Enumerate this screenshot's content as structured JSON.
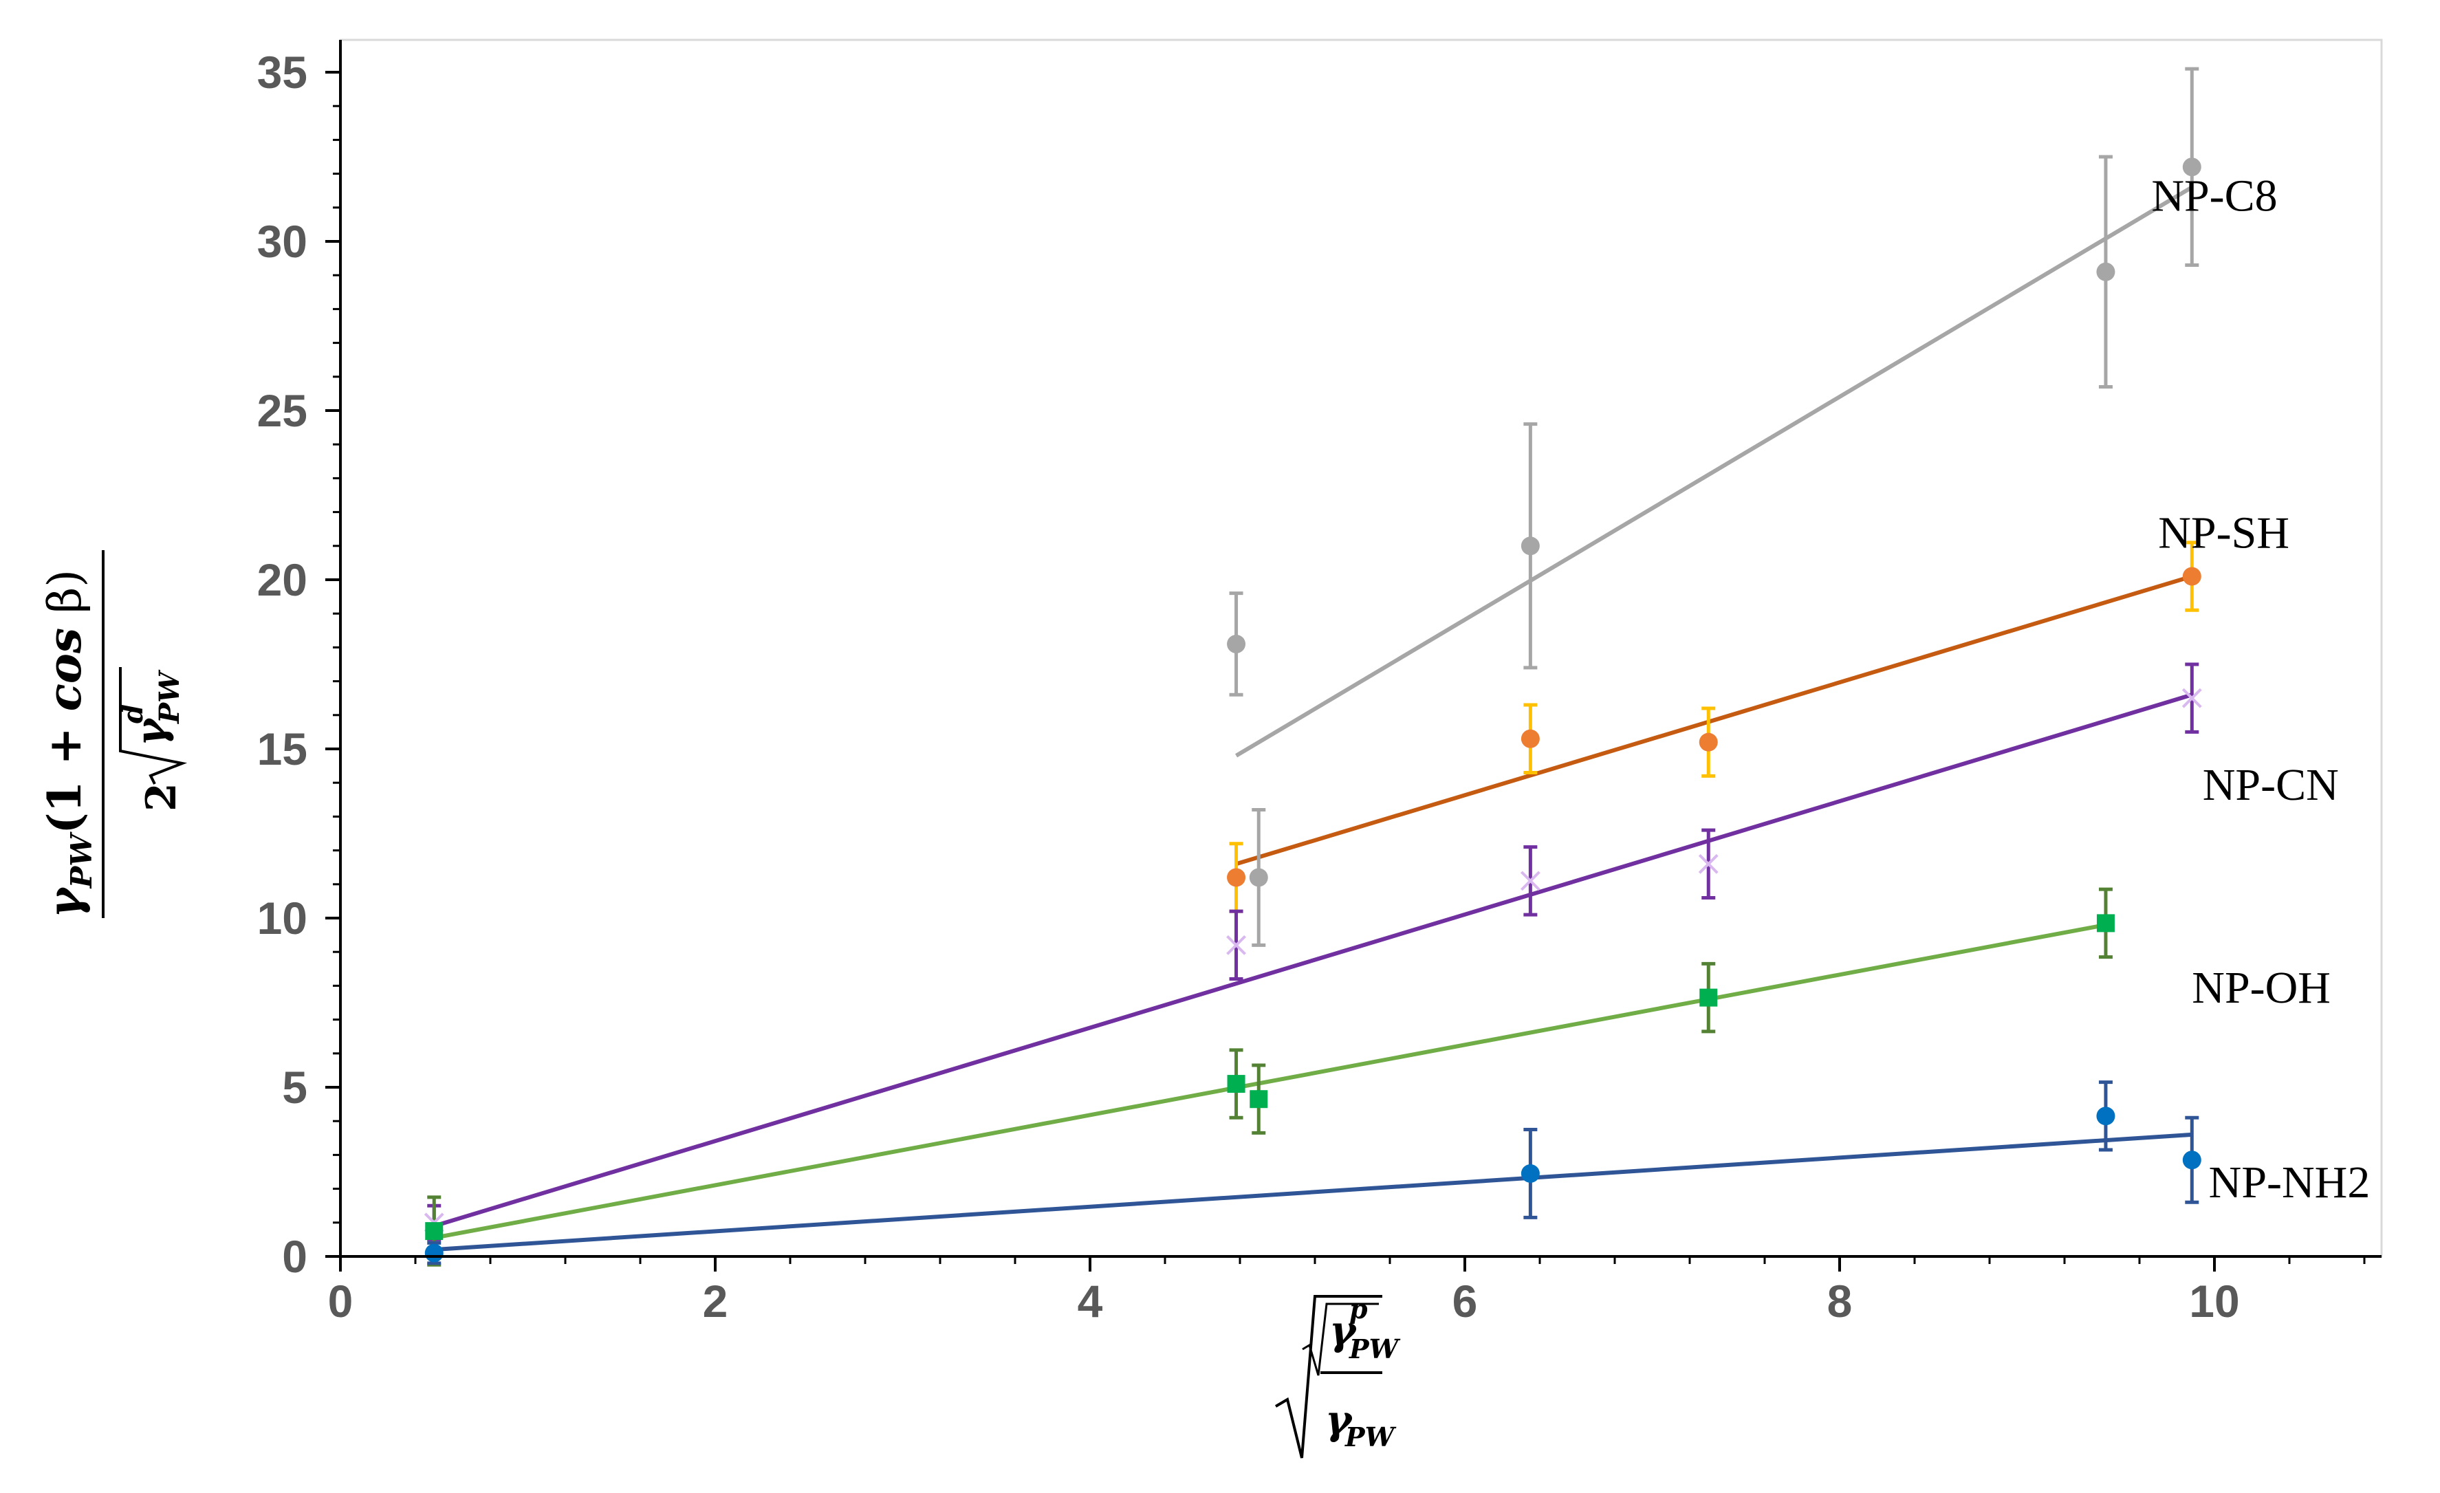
{
  "chart_data": {
    "type": "scatter",
    "title": "",
    "xlim": [
      0,
      11
    ],
    "ylim": [
      0,
      35
    ],
    "x_ticks": [
      0,
      2,
      4,
      6,
      8,
      10
    ],
    "y_ticks": [
      0,
      5,
      10,
      15,
      20,
      25,
      30,
      35
    ],
    "x_tick_labels": [
      "0",
      "2",
      "4",
      "6",
      "8",
      "10"
    ],
    "y_tick_labels": [
      "0",
      "5",
      "10",
      "15",
      "20",
      "25",
      "30",
      "35"
    ],
    "xlabel": {
      "parts": [
        "γ",
        "PW",
        "p",
        "γ",
        "PW"
      ],
      "description": "square root of (gamma_PW^p / gamma_PW)"
    },
    "ylabel": {
      "numerator_parts": [
        "γ",
        "PW",
        "(1 + ",
        "cos",
        " β)"
      ],
      "denominator_parts": [
        "2",
        "γ",
        "PW",
        "d"
      ]
    },
    "series": [
      {
        "name": "NP-C8",
        "color": "#a6a6a6",
        "error_color": "#a6a6a6",
        "marker": "circle",
        "points": [
          {
            "x": 4.78,
            "y": 18.1,
            "err": 1.5
          },
          {
            "x": 4.9,
            "y": 11.2,
            "err": 2.0
          },
          {
            "x": 6.35,
            "y": 21.0,
            "err": 3.6
          },
          {
            "x": 9.42,
            "y": 29.1,
            "err": 3.4
          },
          {
            "x": 9.88,
            "y": 32.2,
            "err": 2.9
          }
        ],
        "fit": {
          "x": [
            4.78,
            9.88
          ],
          "y": [
            14.8,
            31.6
          ]
        }
      },
      {
        "name": "NP-SH",
        "color": "#ed7d31",
        "error_color": "#ffc000",
        "fit_color": "#c55a11",
        "marker": "circle",
        "points": [
          {
            "x": 4.78,
            "y": 11.2,
            "err": 1.0
          },
          {
            "x": 6.35,
            "y": 15.3,
            "err": 1.0
          },
          {
            "x": 7.3,
            "y": 15.2,
            "err": 1.0
          },
          {
            "x": 9.88,
            "y": 20.1,
            "err": 1.0
          }
        ],
        "fit": {
          "x": [
            4.78,
            9.88
          ],
          "y": [
            11.6,
            20.1
          ]
        }
      },
      {
        "name": "NP-CN",
        "color": "#d9b8f0",
        "error_color": "#7030a0",
        "fit_color": "#7030a0",
        "marker": "x",
        "points": [
          {
            "x": 0.5,
            "y": 1.0,
            "err": 0.5
          },
          {
            "x": 4.78,
            "y": 9.2,
            "err": 1.0
          },
          {
            "x": 6.35,
            "y": 11.1,
            "err": 1.0
          },
          {
            "x": 7.3,
            "y": 11.6,
            "err": 1.0
          },
          {
            "x": 9.88,
            "y": 16.5,
            "err": 1.0
          }
        ],
        "fit": {
          "x": [
            0.5,
            9.88
          ],
          "y": [
            0.9,
            16.6
          ]
        }
      },
      {
        "name": "NP-OH",
        "color": "#00b050",
        "error_color": "#548235",
        "fit_color": "#70ad47",
        "marker": "square",
        "points": [
          {
            "x": 0.5,
            "y": 0.75,
            "err": 1.0
          },
          {
            "x": 4.78,
            "y": 5.1,
            "err": 1.0
          },
          {
            "x": 4.9,
            "y": 4.65,
            "err": 1.0
          },
          {
            "x": 7.3,
            "y": 7.65,
            "err": 1.0
          },
          {
            "x": 9.42,
            "y": 9.85,
            "err": 1.0
          }
        ],
        "fit": {
          "x": [
            0.5,
            9.42
          ],
          "y": [
            0.55,
            9.8
          ]
        }
      },
      {
        "name": "NP-NH2",
        "color": "#0070c0",
        "error_color": "#2f5597",
        "fit_color": "#2f5597",
        "marker": "circle",
        "points": [
          {
            "x": 0.5,
            "y": 0.1,
            "err": 0.3
          },
          {
            "x": 6.35,
            "y": 2.45,
            "err": 1.3
          },
          {
            "x": 9.42,
            "y": 4.15,
            "err": 1.0
          },
          {
            "x": 9.88,
            "y": 2.85,
            "err": 1.25
          }
        ],
        "fit": {
          "x": [
            0.5,
            9.88
          ],
          "y": [
            0.2,
            3.6
          ]
        }
      }
    ],
    "annotations": [
      {
        "text": "NP-C8",
        "x": 10.0,
        "y": 30.9
      },
      {
        "text": "NP-SH",
        "x": 10.05,
        "y": 20.95
      },
      {
        "text": "NP-CN",
        "x": 10.3,
        "y": 13.5
      },
      {
        "text": "NP-OH",
        "x": 10.25,
        "y": 7.5
      },
      {
        "text": "NP-NH2",
        "x": 10.4,
        "y": 1.75
      }
    ]
  }
}
